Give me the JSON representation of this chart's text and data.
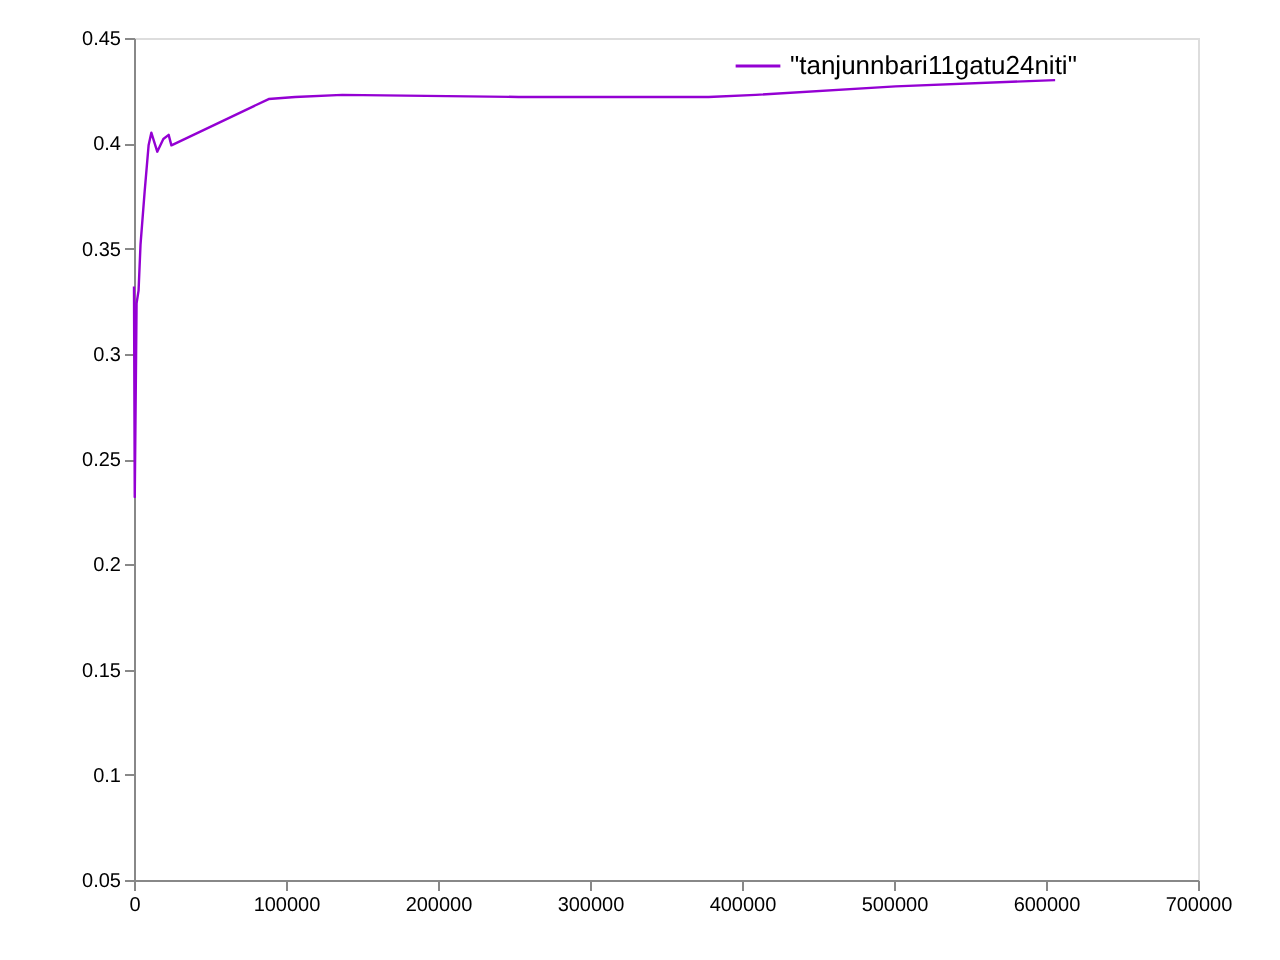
{
  "chart_data": {
    "type": "line",
    "x": [
      0,
      500,
      1700,
      3000,
      4300,
      7000,
      9600,
      11400,
      15300,
      19300,
      22800,
      24600,
      88600,
      106000,
      137000,
      253000,
      255000,
      378000,
      409000,
      501000,
      606000
    ],
    "series": [
      {
        "name": "\"tanjunnbari11gatu24niti\"",
        "color": "#9400d3",
        "values": [
          0.332,
          0.232,
          0.324,
          0.33,
          0.352,
          0.377,
          0.399,
          0.405,
          0.396,
          0.402,
          0.404,
          0.399,
          0.421,
          0.422,
          0.423,
          0.422,
          0.422,
          0.422,
          0.423,
          0.427,
          0.43
        ]
      }
    ],
    "xlim": [
      0,
      700000
    ],
    "xticks": [
      0,
      100000,
      200000,
      300000,
      400000,
      500000,
      600000,
      700000
    ],
    "ylim": [
      0.05,
      0.45
    ],
    "yticks": [
      0.05,
      0.1,
      0.15,
      0.2,
      0.25,
      0.3,
      0.35,
      0.4,
      0.45
    ],
    "grid": false,
    "legend": "top right",
    "marker": "none",
    "line_style": "solid"
  }
}
